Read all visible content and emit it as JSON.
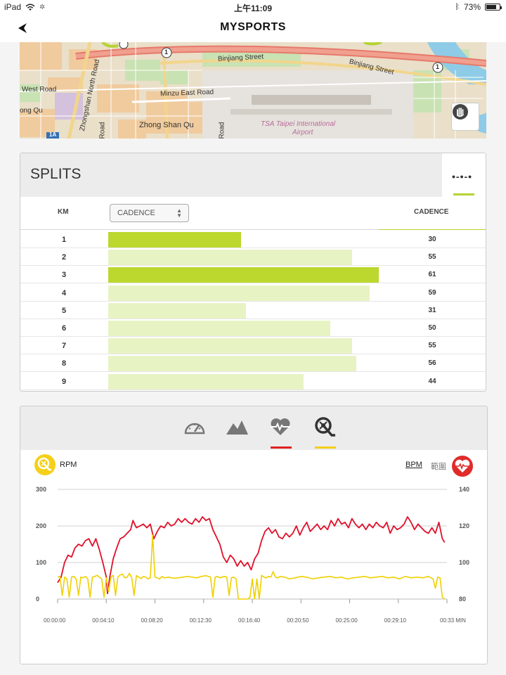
{
  "status_bar": {
    "device": "iPad",
    "time": "上午11:09",
    "battery": "73%"
  },
  "nav": {
    "title": "MYSPORTS"
  },
  "map": {
    "labels": [
      "Binjiang Street",
      "Binjiang Street",
      "West Road",
      "Zhongshan North Road",
      "Minzu East Road",
      "Zhong Shan Qu",
      "ong Qu",
      "TSA Taipei International",
      "Airport",
      "Road",
      "Road",
      "1",
      "1",
      "1A"
    ]
  },
  "splits": {
    "title": "SPLITS",
    "more_label": "•-•-•",
    "col_km": "KM",
    "select_value": "CADENCE",
    "col_value": "CADENCE",
    "max_value": 61,
    "rows": [
      {
        "km": "1",
        "value": 30,
        "highlight": true
      },
      {
        "km": "2",
        "value": 55,
        "highlight": false
      },
      {
        "km": "3",
        "value": 61,
        "highlight": true
      },
      {
        "km": "4",
        "value": 59,
        "highlight": false
      },
      {
        "km": "5",
        "value": 31,
        "highlight": false
      },
      {
        "km": "6",
        "value": 50,
        "highlight": false
      },
      {
        "km": "7",
        "value": 55,
        "highlight": false
      },
      {
        "km": "8",
        "value": 56,
        "highlight": false
      },
      {
        "km": "9",
        "value": 44,
        "highlight": false
      }
    ],
    "colors": {
      "highlight": "#bcd72e",
      "normal": "#e8f3c4"
    }
  },
  "graph": {
    "tabs": [
      {
        "name": "speed-icon",
        "active": false
      },
      {
        "name": "elevation-icon",
        "active": false
      },
      {
        "name": "heart-rate-icon",
        "active": true,
        "underline_color": "#e02020"
      },
      {
        "name": "cadence-icon",
        "active": true,
        "underline_color": "#f2cf1a"
      }
    ],
    "left_label": "RPM",
    "right_label": "BPM",
    "range_label": "範圍",
    "colors": {
      "rpm": "#f0d000",
      "bpm": "#e0102a"
    }
  },
  "chart_data": {
    "type": "line",
    "x_ticks": [
      "00:00:00",
      "00:04:10",
      "00:08:20",
      "00:12:30",
      "00:16:40",
      "00:20:50",
      "00:25:00",
      "00:29:10",
      "00:33 MIN"
    ],
    "y_left": {
      "label": "RPM",
      "ticks": [
        0,
        100,
        200,
        300
      ],
      "range": [
        0,
        300
      ]
    },
    "y_right": {
      "label": "BPM",
      "ticks": [
        80,
        100,
        120,
        140
      ],
      "range": [
        80,
        140
      ]
    },
    "x_range_min": [
      0,
      34
    ],
    "grid": true,
    "series": [
      {
        "name": "BPM",
        "axis": "right",
        "x": [
          0,
          0.3,
          0.6,
          0.9,
          1.2,
          1.5,
          1.8,
          2.1,
          2.4,
          2.7,
          3.0,
          3.3,
          3.6,
          3.9,
          4.2,
          4.3,
          4.5,
          4.8,
          5.1,
          5.4,
          5.7,
          6.0,
          6.3,
          6.5,
          6.8,
          7.1,
          7.4,
          7.7,
          8.0,
          8.3,
          8.6,
          8.9,
          9.2,
          9.5,
          9.8,
          10.1,
          10.4,
          10.7,
          11.0,
          11.3,
          11.6,
          11.9,
          12.2,
          12.5,
          12.8,
          13.1,
          13.4,
          13.7,
          14.0,
          14.3,
          14.6,
          14.9,
          15.2,
          15.5,
          15.8,
          16.1,
          16.4,
          16.7,
          17.0,
          17.3,
          17.6,
          17.9,
          18.2,
          18.5,
          18.8,
          19.1,
          19.4,
          19.7,
          20.0,
          20.3,
          20.6,
          20.9,
          21.2,
          21.5,
          21.8,
          22.1,
          22.4,
          22.7,
          23.0,
          23.3,
          23.6,
          23.9,
          24.2,
          24.5,
          24.8,
          25.1,
          25.4,
          25.7,
          26.0,
          26.3,
          26.6,
          26.9,
          27.2,
          27.5,
          27.8,
          28.1,
          28.4,
          28.7,
          29.0,
          29.3,
          29.6,
          29.9,
          30.2,
          30.5,
          30.8,
          31.1,
          31.4,
          31.7,
          32.0,
          32.3,
          32.6,
          32.9,
          33.2,
          33.4
        ],
        "y": [
          89,
          92,
          100,
          104,
          103,
          108,
          110,
          109,
          112,
          113,
          109,
          113,
          107,
          100,
          92,
          83,
          92,
          102,
          108,
          113,
          114,
          116,
          118,
          123,
          119,
          120,
          121,
          119,
          121,
          113,
          117,
          120,
          119,
          122,
          120,
          121,
          124,
          122,
          124,
          122,
          121,
          124,
          122,
          125,
          123,
          124,
          118,
          114,
          110,
          103,
          100,
          104,
          102,
          98,
          101,
          98,
          100,
          96,
          102,
          105,
          112,
          117,
          119,
          116,
          118,
          114,
          113,
          116,
          114,
          116,
          120,
          115,
          119,
          122,
          117,
          119,
          121,
          118,
          120,
          118,
          123,
          120,
          124,
          121,
          122,
          119,
          124,
          121,
          119,
          121,
          118,
          121,
          119,
          122,
          120,
          119,
          122,
          116,
          120,
          118,
          119,
          121,
          125,
          122,
          118,
          121,
          119,
          117,
          116,
          119,
          116,
          122,
          113,
          111
        ]
      },
      {
        "name": "RPM",
        "axis": "left",
        "x": [
          0,
          0.2,
          0.4,
          0.6,
          0.8,
          1.0,
          1.2,
          1.4,
          1.6,
          1.8,
          2.0,
          2.2,
          2.4,
          2.6,
          2.8,
          3.0,
          3.2,
          3.4,
          3.6,
          3.8,
          4.0,
          4.2,
          4.4,
          4.6,
          4.8,
          5.0,
          5.2,
          5.4,
          5.6,
          5.8,
          6.0,
          6.2,
          6.4,
          6.6,
          6.8,
          7.0,
          7.2,
          7.4,
          7.6,
          7.8,
          8.0,
          8.2,
          8.4,
          8.6,
          8.8,
          9.0,
          9.2,
          9.6,
          10.0,
          10.4,
          10.8,
          11.2,
          11.6,
          12.0,
          12.4,
          12.8,
          13.2,
          13.4,
          13.6,
          13.8,
          14.0,
          14.2,
          14.4,
          14.6,
          14.8,
          15.0,
          15.2,
          15.4,
          15.6,
          15.8,
          16.0,
          16.2,
          16.4,
          16.6,
          16.8,
          17.0,
          17.2,
          17.4,
          17.6,
          17.8,
          18.0,
          18.2,
          18.4,
          18.6,
          18.8,
          19.0,
          19.2,
          19.6,
          20.0,
          20.5,
          21.0,
          21.5,
          22.0,
          22.5,
          23.0,
          23.5,
          24.0,
          24.5,
          25.0,
          25.5,
          26.0,
          26.5,
          27.0,
          27.5,
          28.0,
          28.5,
          29.0,
          29.5,
          30.0,
          30.5,
          31.0,
          31.5,
          32.0,
          32.4,
          32.6,
          32.8,
          33.0,
          33.2,
          33.4
        ],
        "y": [
          60,
          62,
          10,
          60,
          55,
          5,
          60,
          62,
          55,
          10,
          60,
          58,
          62,
          55,
          5,
          60,
          62,
          65,
          60,
          55,
          5,
          58,
          20,
          60,
          65,
          10,
          60,
          66,
          68,
          58,
          60,
          70,
          58,
          10,
          64,
          60,
          56,
          62,
          60,
          55,
          58,
          175,
          60,
          58,
          55,
          62,
          58,
          60,
          57,
          58,
          60,
          62,
          60,
          58,
          62,
          64,
          60,
          5,
          60,
          62,
          58,
          60,
          62,
          60,
          10,
          58,
          60,
          55,
          0,
          0,
          0,
          0,
          0,
          5,
          55,
          0,
          55,
          0,
          65,
          60,
          58,
          62,
          60,
          75,
          60,
          58,
          62,
          60,
          55,
          58,
          62,
          60,
          55,
          58,
          60,
          62,
          58,
          60,
          55,
          58,
          60,
          62,
          58,
          60,
          62,
          58,
          60,
          55,
          62,
          58,
          60,
          58,
          62,
          55,
          30,
          60,
          58,
          5,
          0
        ]
      }
    ]
  }
}
